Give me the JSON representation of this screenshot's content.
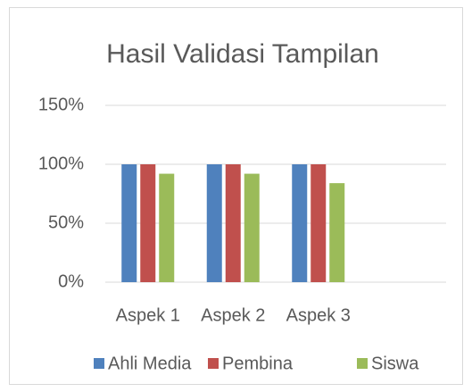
{
  "chart_data": {
    "type": "bar",
    "title": "Hasil Validasi Tampilan",
    "categories": [
      "Aspek 1",
      "Aspek 2",
      "Aspek 3",
      null
    ],
    "series": [
      {
        "name": "Ahli Media",
        "color": "#4f81bd",
        "values": [
          100,
          100,
          100,
          null
        ]
      },
      {
        "name": "Pembina",
        "color": "#c0504d",
        "values": [
          100,
          100,
          100,
          null
        ]
      },
      {
        "name": "Siswa",
        "color": "#9bbb59",
        "values": [
          92,
          92,
          84,
          null
        ]
      }
    ],
    "ylim": [
      0,
      150
    ],
    "yticks": [
      {
        "value": 0,
        "label": "0%"
      },
      {
        "value": 50,
        "label": "50%"
      },
      {
        "value": 100,
        "label": "100%"
      },
      {
        "value": 150,
        "label": "150%"
      }
    ],
    "grid": true,
    "legend": "bottom"
  }
}
